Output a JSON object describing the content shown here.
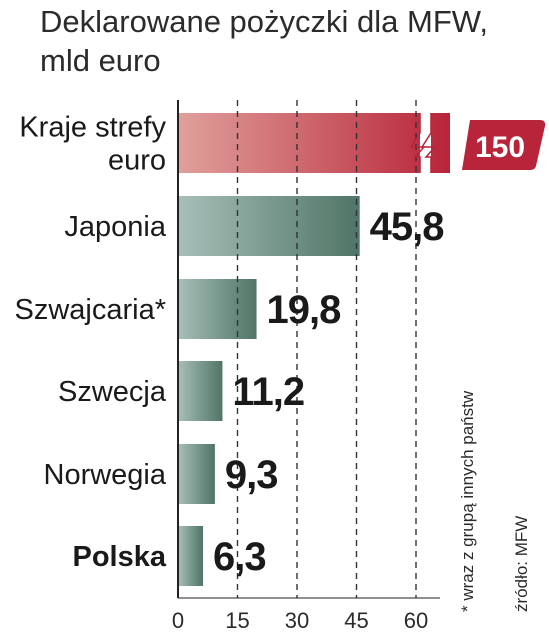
{
  "chart_data": {
    "type": "bar",
    "orientation": "horizontal",
    "title_lines": [
      "Deklarowane pożyczki dla MFW,",
      "mld euro"
    ],
    "categories": [
      "Kraje strefy euro",
      "Japonia",
      "Szwajcaria*",
      "Szwecja",
      "Norwegia",
      "Polska"
    ],
    "category_lines": [
      [
        "Kraje strefy",
        "euro"
      ],
      [
        "Japonia"
      ],
      [
        "Szwajcaria*"
      ],
      [
        "Szwecja"
      ],
      [
        "Norwegia"
      ],
      [
        "Polska"
      ]
    ],
    "values": [
      150,
      45.8,
      19.8,
      11.2,
      9.3,
      6.3
    ],
    "value_labels": [
      "150",
      "45,8",
      "19,8",
      "11,2",
      "9,3",
      "6,3"
    ],
    "highlight_category": "Polska",
    "broken_bar_category": "Kraje strefy euro",
    "xlim": [
      0,
      60
    ],
    "x_ticks": [
      0,
      15,
      30,
      45,
      60
    ],
    "tick_labels": [
      "0",
      "15",
      "30",
      "45",
      "60"
    ],
    "grid": "vertical dashed",
    "footnote": "* wraz z grupą innych państw",
    "source": "źródło: MFW",
    "colors": {
      "euro_bar_start": "#e0a09b",
      "euro_bar_end": "#b8243a",
      "bar_start": "#a8bfb9",
      "bar_end": "#4f7566",
      "badge": "#b8243a",
      "axis": "#222222",
      "grid": "#333333"
    }
  }
}
